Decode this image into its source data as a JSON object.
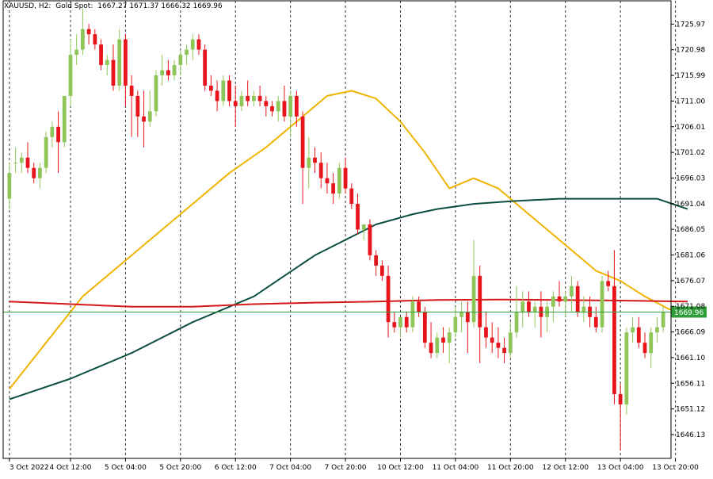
{
  "header": {
    "symbol": "XAUUSD",
    "timeframe": "H2:",
    "description": "Gold Spot",
    "ohlc": "1667.27 1671.37 1666.32 1669.96"
  },
  "colors": {
    "bull": "#8fc65a",
    "bear": "#e8141c",
    "ma_fast": "#f0b400",
    "ma_mid": "#0b4f43",
    "ma_slow": "#d41a1a",
    "price_line": "#2e9e3a",
    "price_tag_bg": "#2e9e3a",
    "grid": "#333333",
    "axis_text": "#000000"
  },
  "chart_data": {
    "type": "candlestick",
    "ylim": [
      1641.5,
      1730.5
    ],
    "y_ticks": [
      "1725.97",
      "1720.98",
      "1715.99",
      "1711.00",
      "1706.01",
      "1701.02",
      "1696.03",
      "1691.04",
      "1686.05",
      "1681.06",
      "1676.07",
      "1671.08",
      "1666.09",
      "1661.10",
      "1656.11",
      "1651.12",
      "1646.13"
    ],
    "x_ticks": [
      "3 Oct 2022",
      "4 Oct 12:00",
      "5 Oct 04:00",
      "5 Oct 20:00",
      "6 Oct 12:00",
      "7 Oct 04:00",
      "7 Oct 20:00",
      "10 Oct 12:00",
      "11 Oct 04:00",
      "11 Oct 20:00",
      "12 Oct 12:00",
      "13 Oct 04:00",
      "13 Oct 20:00"
    ],
    "x_tick_bars": [
      0,
      10,
      19,
      28,
      37,
      46,
      55,
      64,
      73,
      82,
      91,
      100,
      109
    ],
    "current_price": 1669.96,
    "current_price_label": "1669.96",
    "candles": [
      [
        1692,
        1699,
        1690,
        1697
      ],
      [
        1699,
        1702,
        1697,
        1699
      ],
      [
        1699,
        1701,
        1697,
        1700
      ],
      [
        1700,
        1703,
        1697,
        1698
      ],
      [
        1698,
        1699,
        1695,
        1696
      ],
      [
        1696,
        1699,
        1694,
        1698
      ],
      [
        1698,
        1705,
        1697,
        1704
      ],
      [
        1704,
        1707,
        1702,
        1706
      ],
      [
        1706,
        1709,
        1697,
        1703
      ],
      [
        1703,
        1712,
        1702,
        1712
      ],
      [
        1712,
        1723,
        1710,
        1720
      ],
      [
        1720,
        1724,
        1718,
        1721
      ],
      [
        1721,
        1729,
        1720,
        1725
      ],
      [
        1725,
        1726,
        1722,
        1724
      ],
      [
        1724,
        1725,
        1721,
        1722
      ],
      [
        1722,
        1723,
        1717,
        1718
      ],
      [
        1718,
        1720,
        1716,
        1719
      ],
      [
        1719,
        1722,
        1713,
        1714
      ],
      [
        1714,
        1725,
        1713,
        1723
      ],
      [
        1723,
        1724,
        1710,
        1714
      ],
      [
        1714,
        1716,
        1704,
        1712
      ],
      [
        1712,
        1713,
        1704,
        1708
      ],
      [
        1708,
        1713,
        1702,
        1707
      ],
      [
        1707,
        1713,
        1706,
        1709
      ],
      [
        1709,
        1717,
        1708,
        1716
      ],
      [
        1716,
        1720,
        1714,
        1717
      ],
      [
        1717,
        1719,
        1715,
        1716
      ],
      [
        1716,
        1719,
        1715,
        1718
      ],
      [
        1718,
        1721,
        1716,
        1720
      ],
      [
        1720,
        1722,
        1718,
        1721
      ],
      [
        1721,
        1724,
        1719,
        1723
      ],
      [
        1723,
        1724,
        1720,
        1721
      ],
      [
        1721,
        1722,
        1713,
        1714
      ],
      [
        1714,
        1716,
        1712,
        1713
      ],
      [
        1713,
        1715,
        1709,
        1711
      ],
      [
        1711,
        1716,
        1710,
        1715
      ],
      [
        1715,
        1716,
        1710,
        1711
      ],
      [
        1711,
        1714,
        1706,
        1710
      ],
      [
        1710,
        1713,
        1709,
        1712
      ],
      [
        1712,
        1715,
        1710,
        1711
      ],
      [
        1711,
        1713,
        1710,
        1712
      ],
      [
        1712,
        1714,
        1710,
        1711
      ],
      [
        1711,
        1712,
        1708,
        1710
      ],
      [
        1710,
        1711,
        1708,
        1709
      ],
      [
        1709,
        1712,
        1707,
        1711
      ],
      [
        1711,
        1714,
        1707,
        1708
      ],
      [
        1708,
        1713,
        1704,
        1712
      ],
      [
        1712,
        1713,
        1706,
        1708
      ],
      [
        1708,
        1709,
        1691,
        1698
      ],
      [
        1698,
        1704,
        1694,
        1700
      ],
      [
        1700,
        1702,
        1697,
        1699
      ],
      [
        1699,
        1701,
        1694,
        1696
      ],
      [
        1696,
        1699,
        1693,
        1695
      ],
      [
        1695,
        1697,
        1691,
        1693
      ],
      [
        1693,
        1699,
        1692,
        1698
      ],
      [
        1698,
        1700,
        1693,
        1694
      ],
      [
        1694,
        1695,
        1690,
        1691
      ],
      [
        1691,
        1693,
        1685,
        1686
      ],
      [
        1686,
        1687,
        1684,
        1687
      ],
      [
        1687,
        1688,
        1680,
        1681
      ],
      [
        1681,
        1682,
        1677,
        1679
      ],
      [
        1679,
        1680,
        1676,
        1677
      ],
      [
        1677,
        1679,
        1665,
        1668
      ],
      [
        1668,
        1670,
        1666,
        1667
      ],
      [
        1667,
        1669,
        1665,
        1669
      ],
      [
        1669,
        1670,
        1666,
        1667
      ],
      [
        1667,
        1673,
        1666,
        1672
      ],
      [
        1672,
        1673,
        1669,
        1670
      ],
      [
        1670,
        1671,
        1663,
        1664
      ],
      [
        1664,
        1668,
        1661,
        1662
      ],
      [
        1662,
        1666,
        1661,
        1665
      ],
      [
        1665,
        1667,
        1662,
        1664
      ],
      [
        1664,
        1667,
        1660,
        1666
      ],
      [
        1666,
        1671,
        1665,
        1669
      ],
      [
        1669,
        1672,
        1666,
        1670
      ],
      [
        1670,
        1672,
        1662,
        1668
      ],
      [
        1668,
        1684,
        1667,
        1677
      ],
      [
        1677,
        1679,
        1660,
        1667
      ],
      [
        1667,
        1670,
        1663,
        1665
      ],
      [
        1665,
        1668,
        1662,
        1664
      ],
      [
        1664,
        1667,
        1661,
        1663
      ],
      [
        1663,
        1665,
        1660,
        1662
      ],
      [
        1662,
        1668,
        1661,
        1666
      ],
      [
        1666,
        1675,
        1665,
        1670
      ],
      [
        1670,
        1674,
        1667,
        1672
      ],
      [
        1672,
        1674,
        1669,
        1670
      ],
      [
        1670,
        1672,
        1667,
        1671
      ],
      [
        1671,
        1674,
        1665,
        1669
      ],
      [
        1669,
        1672,
        1666,
        1671
      ],
      [
        1671,
        1674,
        1668,
        1673
      ],
      [
        1673,
        1676,
        1671,
        1672
      ],
      [
        1672,
        1674,
        1669,
        1673
      ],
      [
        1673,
        1677,
        1670,
        1675
      ],
      [
        1675,
        1676,
        1669,
        1670
      ],
      [
        1670,
        1673,
        1668,
        1671
      ],
      [
        1671,
        1673,
        1667,
        1669
      ],
      [
        1669,
        1671,
        1666,
        1667
      ],
      [
        1667,
        1677,
        1666,
        1676
      ],
      [
        1676,
        1678,
        1674,
        1675
      ],
      [
        1675,
        1682,
        1652,
        1654
      ],
      [
        1654,
        1656,
        1643,
        1652
      ],
      [
        1652,
        1667,
        1650,
        1666
      ],
      [
        1666,
        1669,
        1664,
        1667
      ],
      [
        1667,
        1669,
        1663,
        1664
      ],
      [
        1664,
        1666,
        1661,
        1662
      ],
      [
        1662,
        1667,
        1659,
        1666
      ],
      [
        1666,
        1669,
        1664,
        1667
      ],
      [
        1667,
        1671,
        1666,
        1670
      ]
    ],
    "series": [
      {
        "color": "#f0b400",
        "points": [
          [
            0,
            1655
          ],
          [
            6,
            1664
          ],
          [
            12,
            1673
          ],
          [
            18,
            1679
          ],
          [
            24,
            1685
          ],
          [
            30,
            1691
          ],
          [
            36,
            1697
          ],
          [
            42,
            1702
          ],
          [
            48,
            1708
          ],
          [
            52,
            1712
          ],
          [
            56,
            1713
          ],
          [
            60,
            1711.5
          ],
          [
            64,
            1707
          ],
          [
            68,
            1701
          ],
          [
            72,
            1694
          ],
          [
            76,
            1696
          ],
          [
            80,
            1694
          ],
          [
            84,
            1690
          ],
          [
            88,
            1686
          ],
          [
            92,
            1682
          ],
          [
            96,
            1678
          ],
          [
            100,
            1676
          ],
          [
            104,
            1673
          ],
          [
            108,
            1670.5
          ],
          [
            111,
            1670
          ]
        ]
      },
      {
        "color": "#0b4f43",
        "points": [
          [
            0,
            1653
          ],
          [
            10,
            1657
          ],
          [
            20,
            1662
          ],
          [
            30,
            1668
          ],
          [
            40,
            1673
          ],
          [
            50,
            1681
          ],
          [
            60,
            1687
          ],
          [
            66,
            1689
          ],
          [
            70,
            1690
          ],
          [
            76,
            1691
          ],
          [
            82,
            1691.5
          ],
          [
            90,
            1692
          ],
          [
            100,
            1692
          ],
          [
            106,
            1692
          ],
          [
            111,
            1690
          ]
        ]
      },
      {
        "color": "#d41a1a",
        "points": [
          [
            0,
            1672
          ],
          [
            10,
            1671.5
          ],
          [
            20,
            1671
          ],
          [
            30,
            1671
          ],
          [
            40,
            1671.5
          ],
          [
            50,
            1671.8
          ],
          [
            60,
            1672
          ],
          [
            70,
            1672.3
          ],
          [
            80,
            1672.4
          ],
          [
            90,
            1672.3
          ],
          [
            100,
            1672.2
          ],
          [
            111,
            1672
          ]
        ]
      }
    ]
  }
}
